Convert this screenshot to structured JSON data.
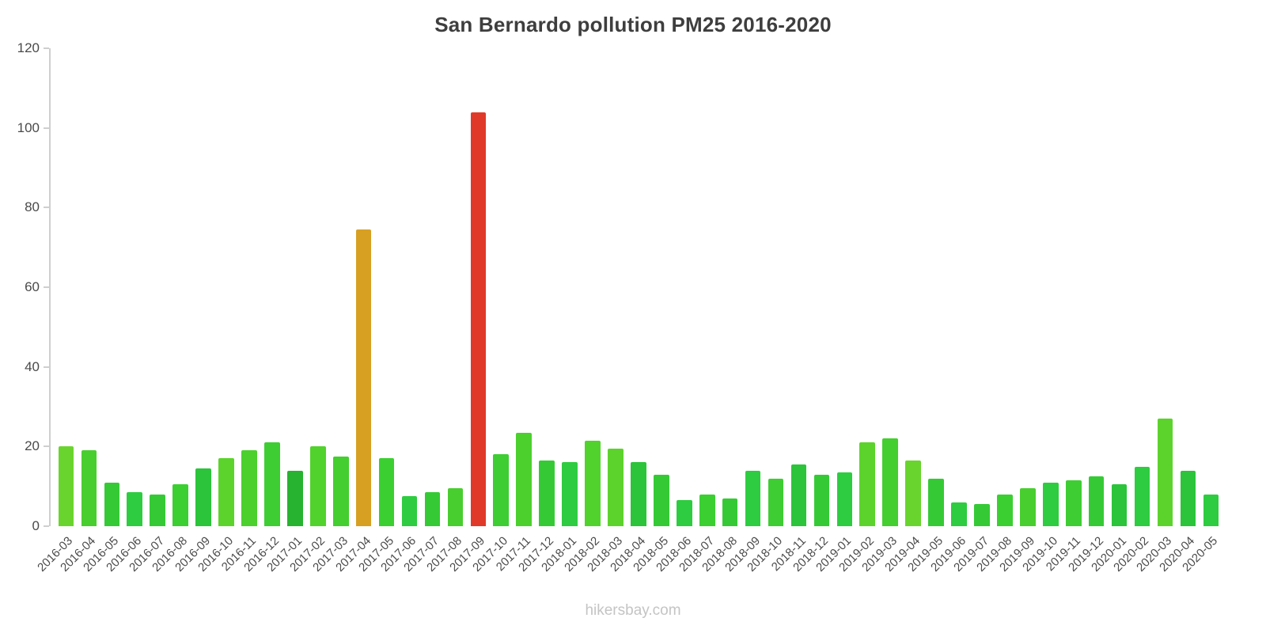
{
  "page": {
    "title": "San Bernardo pollution PM25 2016-2020",
    "footer": "hikersbay.com"
  },
  "chart_data": {
    "type": "bar",
    "title": "San Bernardo pollution PM25 2016-2020",
    "xlabel": "",
    "ylabel": "",
    "ylim": [
      0,
      120
    ],
    "yticks": [
      0,
      20,
      40,
      60,
      80,
      100,
      120
    ],
    "grid": false,
    "legend": "none",
    "categories": [
      "2016-03",
      "2016-04",
      "2016-05",
      "2016-06",
      "2016-07",
      "2016-08",
      "2016-09",
      "2016-10",
      "2016-11",
      "2016-12",
      "2017-01",
      "2017-02",
      "2017-03",
      "2017-04",
      "2017-05",
      "2017-06",
      "2017-07",
      "2017-08",
      "2017-09",
      "2017-10",
      "2017-11",
      "2017-12",
      "2018-01",
      "2018-02",
      "2018-03",
      "2018-04",
      "2018-05",
      "2018-06",
      "2018-07",
      "2018-08",
      "2018-09",
      "2018-10",
      "2018-11",
      "2018-12",
      "2019-01",
      "2019-02",
      "2019-03",
      "2019-04",
      "2019-05",
      "2019-06",
      "2019-07",
      "2019-08",
      "2019-09",
      "2019-10",
      "2019-11",
      "2019-12",
      "2020-01",
      "2020-02",
      "2020-03",
      "2020-04",
      "2020-05"
    ],
    "values": [
      20,
      19,
      11,
      8.5,
      8,
      10.5,
      14.5,
      17,
      19,
      21,
      14,
      20,
      17.5,
      74.5,
      17,
      7.5,
      8.5,
      9.5,
      104,
      18,
      23.5,
      16.5,
      16,
      21.5,
      19.5,
      16,
      13,
      6.5,
      8,
      7,
      14,
      12,
      15.5,
      13,
      13.5,
      21,
      22,
      16.5,
      12,
      6,
      5.5,
      8,
      9.5,
      11,
      11.5,
      12.5,
      10.5,
      15,
      27,
      14,
      8
    ],
    "colors": [
      "#6ad42e",
      "#49ce2f",
      "#35ca35",
      "#2ecc40",
      "#35ca35",
      "#3bcf32",
      "#2bc43a",
      "#5cd32c",
      "#4bd02e",
      "#3ecd33",
      "#27b32f",
      "#52d22c",
      "#44ce30",
      "#d7a022",
      "#3bcf32",
      "#2ecc40",
      "#35ca35",
      "#49ce2f",
      "#e0392a",
      "#3ecd33",
      "#4bd02e",
      "#35ca35",
      "#2ecc40",
      "#52d22c",
      "#5cd32c",
      "#2bc43a",
      "#35ca35",
      "#2ecc40",
      "#3bcf32",
      "#35ca35",
      "#2ecc40",
      "#3ecd33",
      "#2bc43a",
      "#35ca35",
      "#2ecc40",
      "#5cd32c",
      "#44ce30",
      "#6ad42e",
      "#35ca35",
      "#2ecc40",
      "#35ca35",
      "#3bcf32",
      "#49ce2f",
      "#2ecc40",
      "#3ecd33",
      "#35ca35",
      "#2bc43a",
      "#2ecc40",
      "#5cd32c",
      "#2bc43a",
      "#2ecc40"
    ],
    "highlight_colors": {
      "normal_green": "#2ecc40",
      "warning_orange": "#d7a022",
      "alert_red": "#e0392a"
    }
  }
}
